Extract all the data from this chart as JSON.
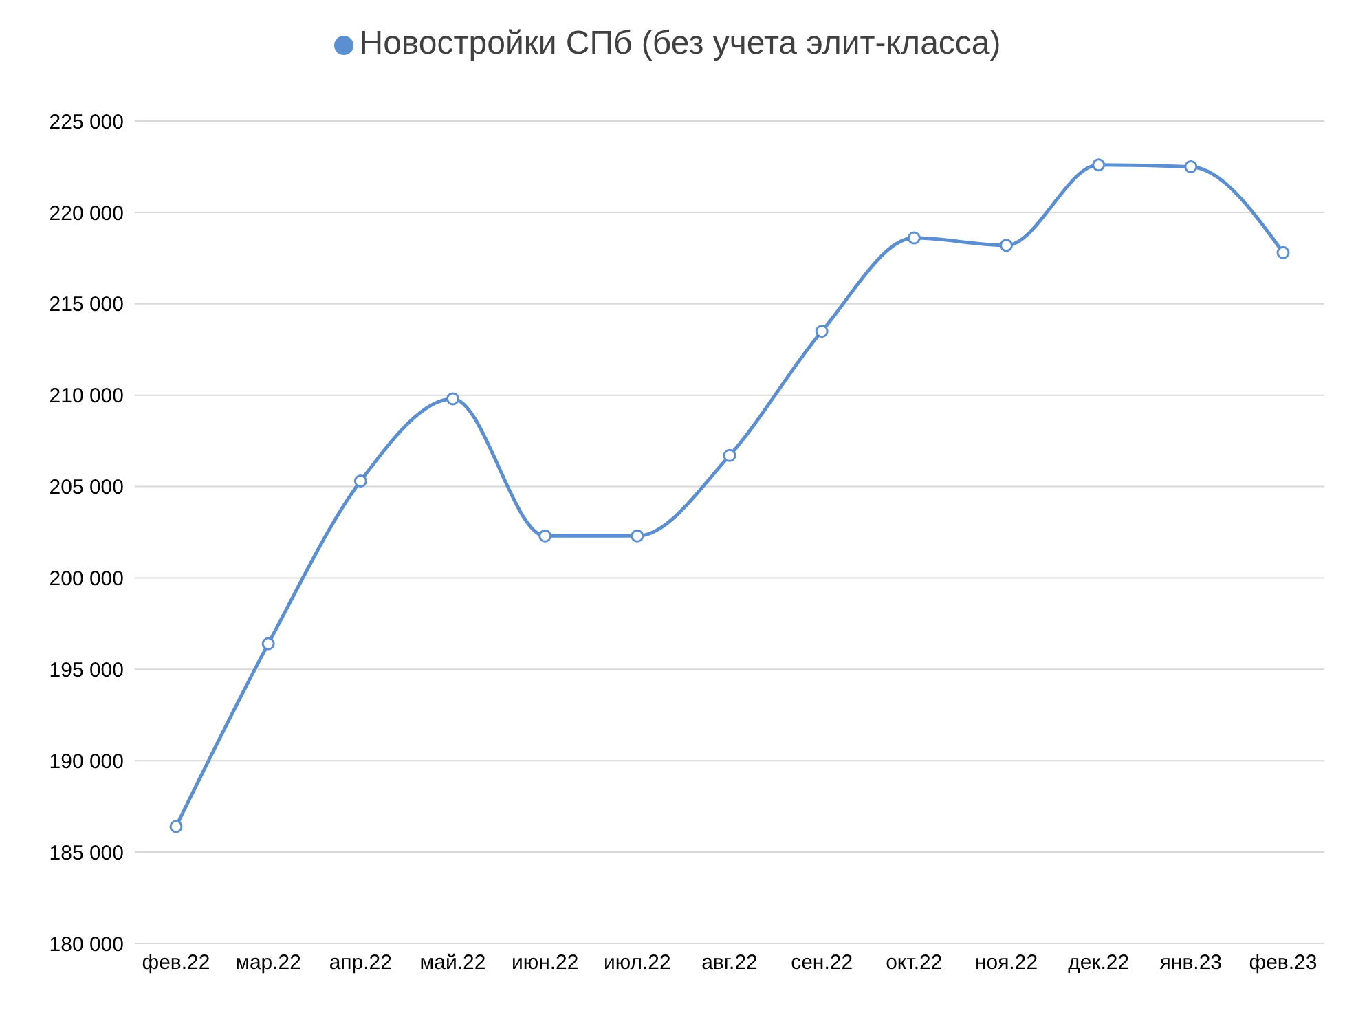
{
  "chart_data": {
    "type": "line",
    "categories": [
      "фев.22",
      "мар.22",
      "апр.22",
      "май.22",
      "июн.22",
      "июл.22",
      "авг.22",
      "сен.22",
      "окт.22",
      "ноя.22",
      "дек.22",
      "янв.23",
      "фев.23"
    ],
    "series": [
      {
        "name": "Новостройки СПб (без учета элит-класса)",
        "color": "#5b8fd0",
        "values": [
          186400,
          196400,
          205300,
          209800,
          202300,
          202300,
          206700,
          213500,
          218600,
          218200,
          222600,
          222500,
          217800
        ]
      }
    ],
    "ylim": [
      180000,
      225000
    ],
    "yticks": [
      {
        "value": 180000,
        "label": "180 000"
      },
      {
        "value": 185000,
        "label": "185 000"
      },
      {
        "value": 190000,
        "label": "190 000"
      },
      {
        "value": 195000,
        "label": "195 000"
      },
      {
        "value": 200000,
        "label": "200 000"
      },
      {
        "value": 205000,
        "label": "205 000"
      },
      {
        "value": 210000,
        "label": "210 000"
      },
      {
        "value": 215000,
        "label": "215 000"
      },
      {
        "value": 220000,
        "label": "220 000"
      },
      {
        "value": 225000,
        "label": "225 000"
      }
    ],
    "grid": "y",
    "legend": "top",
    "marker": "circle",
    "line_style": "solid"
  }
}
